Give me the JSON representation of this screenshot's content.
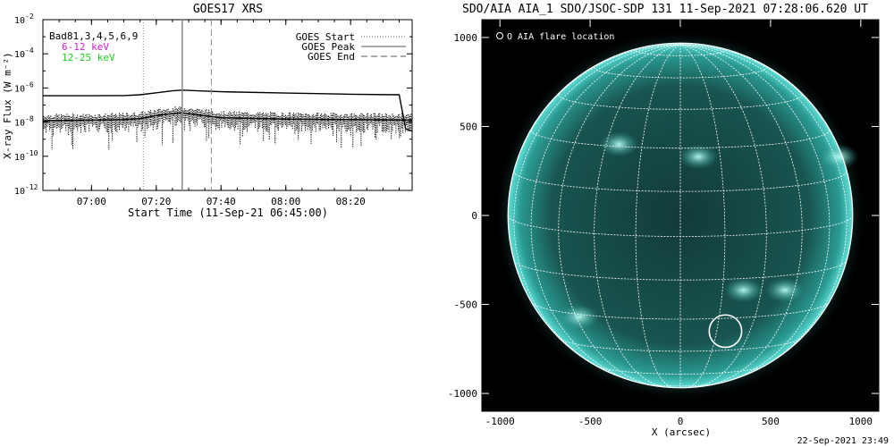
{
  "footer_timestamp": "22-Sep-2021 23:49",
  "chart_data": [
    {
      "type": "line",
      "title": "GOES17 XRS",
      "xlabel": "Start Time (11-Sep-21 06:45:00)",
      "ylabel": "X-ray Flux (W m^-2)",
      "y_scale": "log",
      "ylim": [
        1e-12,
        0.01
      ],
      "xlim": [
        "06:45",
        "08:39"
      ],
      "x_ticks": [
        "07:00",
        "07:20",
        "07:40",
        "08:00",
        "08:20"
      ],
      "y_ticks": [
        {
          "exp": "-2",
          "value": 0.01
        },
        {
          "exp": "-4",
          "value": 0.0001
        },
        {
          "exp": "-6",
          "value": 1e-06
        },
        {
          "exp": "-8",
          "value": 1e-08
        },
        {
          "exp": "-10",
          "value": 1e-10
        },
        {
          "exp": "-12",
          "value": 1e-12
        }
      ],
      "overlay_label": "Bad81,3,4,5,6,9",
      "legend_left": [
        {
          "label": "6-12 keV",
          "color": "#cc22cc"
        },
        {
          "label": "12-25 keV",
          "color": "#22cc22"
        }
      ],
      "legend_right": [
        {
          "label": "GOES Start",
          "style": "dotted"
        },
        {
          "label": "GOES Peak",
          "style": "solid"
        },
        {
          "label": "GOES End",
          "style": "dashed"
        }
      ],
      "markers": {
        "start": "07:16",
        "peak": "07:28",
        "end": "07:37"
      },
      "series": [
        {
          "style": "solid",
          "points": [
            [
              "06:45",
              3.5e-07
            ],
            [
              "07:00",
              3.5e-07
            ],
            [
              "07:10",
              3.6e-07
            ],
            [
              "07:15",
              4e-07
            ],
            [
              "07:20",
              5.2e-07
            ],
            [
              "07:25",
              6.8e-07
            ],
            [
              "07:28",
              7.5e-07
            ],
            [
              "07:32",
              7e-07
            ],
            [
              "07:40",
              6e-07
            ],
            [
              "08:00",
              5e-07
            ],
            [
              "08:20",
              4.3e-07
            ],
            [
              "08:35",
              4e-07
            ],
            [
              "08:37",
              4e-09
            ],
            [
              "08:39",
              3e-09
            ]
          ]
        },
        {
          "style": "dotted",
          "points": [
            [
              "06:45",
              1.2e-08
            ],
            [
              "07:00",
              1.3e-08
            ],
            [
              "07:10",
              1.4e-08
            ],
            [
              "07:15",
              1.6e-08
            ],
            [
              "07:20",
              2.4e-08
            ],
            [
              "07:25",
              3.2e-08
            ],
            [
              "07:28",
              3.5e-08
            ],
            [
              "07:32",
              2.8e-08
            ],
            [
              "07:40",
              1.8e-08
            ],
            [
              "08:00",
              1.5e-08
            ],
            [
              "08:20",
              1.4e-08
            ],
            [
              "08:39",
              1.3e-08
            ]
          ]
        }
      ]
    },
    {
      "type": "image",
      "title": "SDO/AIA AIA_1 SDO/JSOC-SDP 131 11-Sep-2021 07:28:06.620 UT",
      "xlabel": "X (arcsec)",
      "ylabel": "",
      "xlim": [
        -1100,
        1100
      ],
      "ylim": [
        -1100,
        1100
      ],
      "x_ticks": [
        -1000,
        -500,
        0,
        500,
        1000
      ],
      "y_ticks": [
        1000,
        500,
        0,
        -500,
        -1000
      ],
      "legend": "O AIA flare location",
      "disk_radius_arcsec": 955,
      "disk_color": "#2a9a92",
      "limb_color": "#5fe0d8",
      "grid_spacing_deg": 15,
      "flare_location": {
        "x": 250,
        "y": -650,
        "radius_arcsec": 90
      },
      "bright_regions": [
        {
          "x": 350,
          "y": -420
        },
        {
          "x": 580,
          "y": -420
        },
        {
          "x": -560,
          "y": -570
        },
        {
          "x": 880,
          "y": 330
        },
        {
          "x": 100,
          "y": 330
        },
        {
          "x": -340,
          "y": 400
        }
      ]
    }
  ]
}
